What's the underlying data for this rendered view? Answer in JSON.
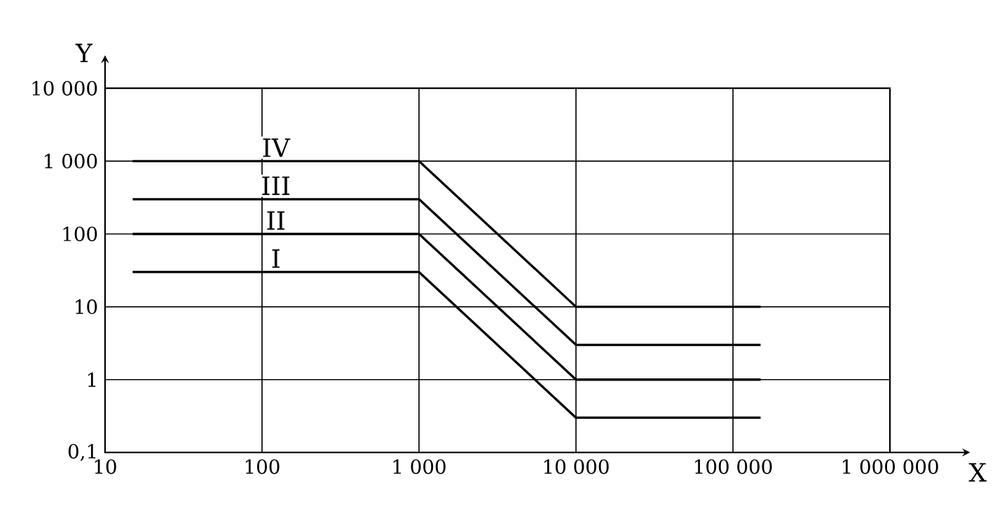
{
  "chart_data": {
    "type": "line",
    "xlabel": "X",
    "ylabel": "Y",
    "log": "xy",
    "grid": true,
    "xlim": [
      10,
      1000000
    ],
    "ylim": [
      0.1,
      10000
    ],
    "xticks": [
      10,
      100,
      {
        "value": 1000,
        "label": "1 000"
      },
      {
        "value": 10000,
        "label": "10 000"
      },
      {
        "value": 100000,
        "label": "100 000"
      },
      {
        "value": 1000000,
        "label": "1 000 000"
      }
    ],
    "yticks": [
      {
        "value": 0.1,
        "label": "0,1"
      },
      1,
      10,
      100,
      {
        "value": 1000,
        "label": "1 000"
      },
      {
        "value": 10000,
        "label": "10 000"
      }
    ],
    "series": [
      {
        "name": "I",
        "color": "#000000",
        "x": [
          15,
          1000,
          10000,
          150000
        ],
        "values": [
          30,
          30,
          0.3,
          0.3
        ]
      },
      {
        "name": "II",
        "color": "#000000",
        "x": [
          15,
          1000,
          10000,
          150000
        ],
        "values": [
          100,
          100,
          1,
          1
        ]
      },
      {
        "name": "III",
        "color": "#000000",
        "x": [
          15,
          1000,
          10000,
          150000
        ],
        "values": [
          300,
          300,
          3,
          3
        ]
      },
      {
        "name": "IV",
        "color": "#000000",
        "x": [
          15,
          1000,
          10000,
          150000
        ],
        "values": [
          1000,
          1000,
          10,
          10
        ]
      }
    ]
  }
}
